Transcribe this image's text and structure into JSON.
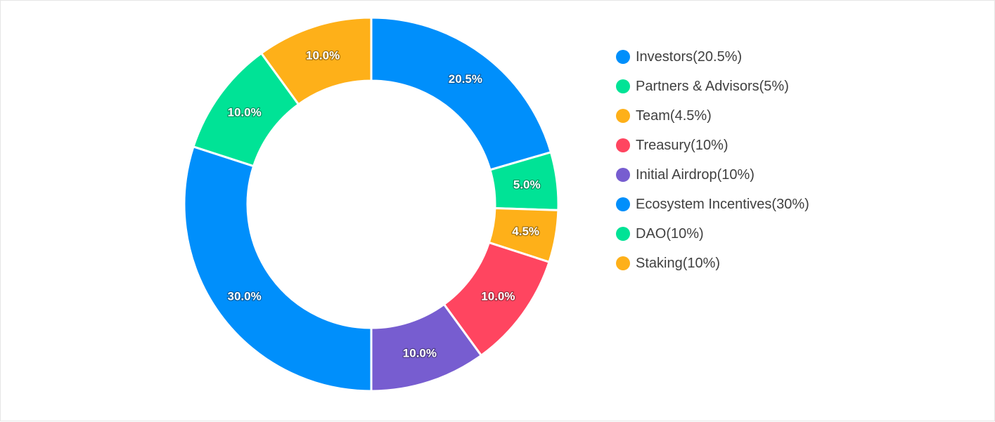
{
  "chart_data": {
    "type": "pie",
    "donut": true,
    "legend_position": "right",
    "slices": [
      {
        "name": "Investors",
        "value": 20.5,
        "color": "#008FFB",
        "label": "20.5%",
        "legend": "Investors(20.5%)"
      },
      {
        "name": "Partners & Advisors",
        "value": 5,
        "color": "#00E396",
        "label": "5.0%",
        "legend": "Partners & Advisors(5%)"
      },
      {
        "name": "Team",
        "value": 4.5,
        "color": "#FEB019",
        "label": "4.5%",
        "legend": "Team(4.5%)"
      },
      {
        "name": "Treasury",
        "value": 10,
        "color": "#FF4560",
        "label": "10.0%",
        "legend": "Treasury(10%)"
      },
      {
        "name": "Initial Airdrop",
        "value": 10,
        "color": "#775DD0",
        "label": "10.0%",
        "legend": "Initial Airdrop(10%)"
      },
      {
        "name": "Ecosystem Incentives",
        "value": 30,
        "color": "#008FFB",
        "label": "30.0%",
        "legend": "Ecosystem Incentives(30%)"
      },
      {
        "name": "DAO",
        "value": 10,
        "color": "#00E396",
        "label": "10.0%",
        "legend": "DAO(10%)"
      },
      {
        "name": "Staking",
        "value": 10,
        "color": "#FEB019",
        "label": "10.0%",
        "legend": "Staking(10%)"
      }
    ]
  }
}
